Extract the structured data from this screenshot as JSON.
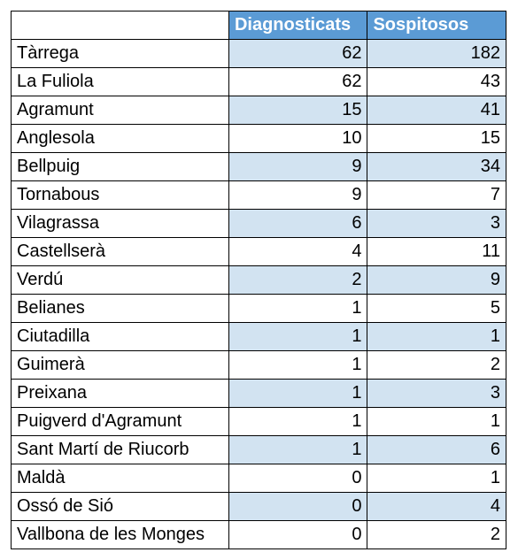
{
  "colors": {
    "header_bg": "#5b9bd5",
    "header_text": "#ffffff",
    "row_alt_bg": "#d2e3f1",
    "row_bg": "#ffffff",
    "border": "#000000"
  },
  "table": {
    "columns": [
      "Diagnosticats",
      "Sospitosos"
    ],
    "rows": [
      {
        "name": "Tàrrega",
        "diag": 62,
        "sosp": 182
      },
      {
        "name": "La Fuliola",
        "diag": 62,
        "sosp": 43
      },
      {
        "name": "Agramunt",
        "diag": 15,
        "sosp": 41
      },
      {
        "name": "Anglesola",
        "diag": 10,
        "sosp": 15
      },
      {
        "name": "Bellpuig",
        "diag": 9,
        "sosp": 34
      },
      {
        "name": "Tornabous",
        "diag": 9,
        "sosp": 7
      },
      {
        "name": "Vilagrassa",
        "diag": 6,
        "sosp": 3
      },
      {
        "name": "Castellserà",
        "diag": 4,
        "sosp": 11
      },
      {
        "name": "Verdú",
        "diag": 2,
        "sosp": 9
      },
      {
        "name": "Belianes",
        "diag": 1,
        "sosp": 5
      },
      {
        "name": "Ciutadilla",
        "diag": 1,
        "sosp": 1
      },
      {
        "name": "Guimerà",
        "diag": 1,
        "sosp": 2
      },
      {
        "name": "Preixana",
        "diag": 1,
        "sosp": 3
      },
      {
        "name": "Puigverd d'Agramunt",
        "diag": 1,
        "sosp": 1
      },
      {
        "name": "Sant Martí de Riucorb",
        "diag": 1,
        "sosp": 6
      },
      {
        "name": "Maldà",
        "diag": 0,
        "sosp": 1
      },
      {
        "name": "Ossó de Sió",
        "diag": 0,
        "sosp": 4
      },
      {
        "name": "Vallbona de les Monges",
        "diag": 0,
        "sosp": 2
      }
    ]
  }
}
